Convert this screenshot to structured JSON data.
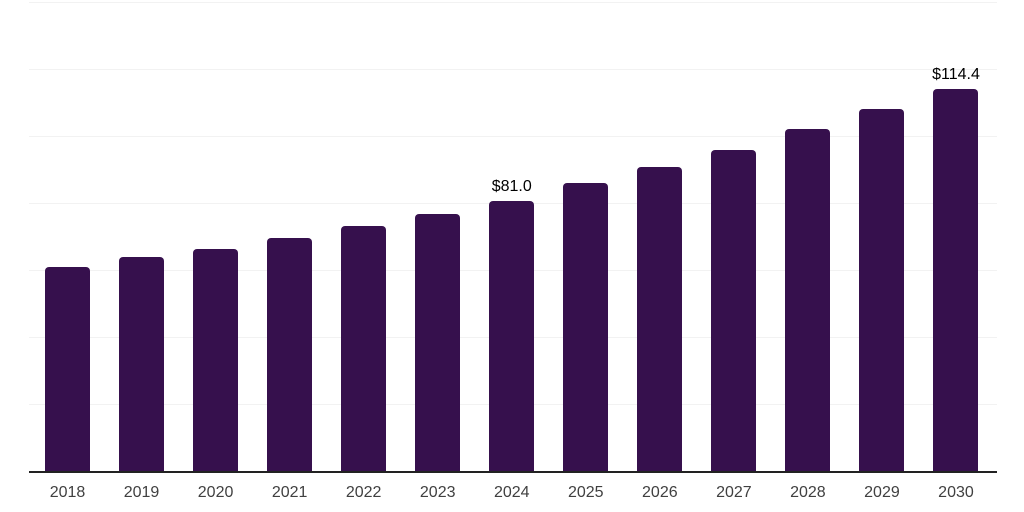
{
  "chart_data": {
    "type": "bar",
    "title": "",
    "xlabel": "",
    "ylabel": "",
    "categories": [
      "2018",
      "2019",
      "2020",
      "2021",
      "2022",
      "2023",
      "2024",
      "2025",
      "2026",
      "2027",
      "2028",
      "2029",
      "2030"
    ],
    "values": [
      61.1,
      64.1,
      66.7,
      69.8,
      73.3,
      77.1,
      81.0,
      86.2,
      91.0,
      96.1,
      102.3,
      108.3,
      114.4
    ],
    "data_labels": {
      "2024": "$81.0",
      "2030": "$114.4"
    },
    "ylim": [
      0,
      140
    ],
    "gridline_values": [
      20,
      40,
      60,
      80,
      100,
      120,
      140
    ],
    "grid": true,
    "legend": false,
    "colors": {
      "bar": "#36104D",
      "grid": "#F2F2F2",
      "axis_line": "#222222",
      "tick_label": "#404040",
      "data_label": "#000000",
      "background": "#FFFFFF"
    }
  }
}
